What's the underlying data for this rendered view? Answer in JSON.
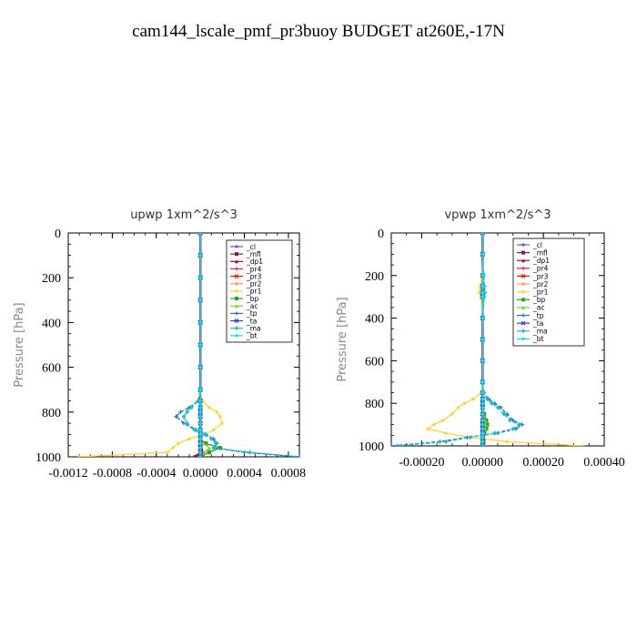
{
  "title": "cam144_lscale_pmf_pr3buoy  BUDGET at260E,-17N",
  "colors": {
    "cl": "#8e44c6",
    "mfl": "#7a1f4f",
    "dp1": "#b0003a",
    "pr4": "#e8203a",
    "pr3": "#ff1010",
    "pr2": "#ff9f3a",
    "pr1": "#ffd23a",
    "bp": "#2ca02c",
    "ac": "#7fd12f",
    "tp": "#1f77b4",
    "ta": "#3a3ad8",
    "ma": "#17becf",
    "bt": "#00e5ff"
  },
  "chart_data": [
    {
      "type": "line",
      "title": "upwp   1xm^2/s^3",
      "ylabel": "Pressure  [hPa]",
      "xlabel": "",
      "xlim": [
        -0.0012,
        0.0009
      ],
      "ylim": [
        1000,
        0
      ],
      "xticks": [
        -0.0012,
        -0.0008,
        -0.0004,
        0.0,
        0.0004,
        0.0008
      ],
      "xtick_labels": [
        "-0.0012",
        "-0.0008",
        "-0.0004",
        "0.0000",
        "0.0004",
        "0.0008"
      ],
      "yticks": [
        0,
        200,
        400,
        600,
        800,
        1000
      ],
      "ytick_labels": [
        "0",
        "200",
        "400",
        "600",
        "800",
        "1000"
      ],
      "legend_position": "top-right",
      "legend": [
        "_cl",
        "_mfl",
        "_dp1",
        "_pr4",
        "_pr3",
        "_pr2",
        "_pr1",
        "_bp",
        "_ac",
        "_tp",
        "_ta",
        "_ma",
        "_bt"
      ],
      "y": [
        0,
        100,
        200,
        300,
        400,
        500,
        600,
        700,
        750,
        780,
        800,
        820,
        850,
        880,
        900,
        920,
        940,
        960,
        980,
        1000
      ],
      "series": [
        {
          "key": "cl",
          "values": [
            0,
            0,
            0,
            0,
            0,
            0,
            0,
            0,
            0,
            0,
            0,
            0,
            0,
            0,
            0,
            0,
            0,
            0,
            0,
            0
          ]
        },
        {
          "key": "mfl",
          "values": [
            0,
            0,
            0,
            0,
            0,
            0,
            0,
            0,
            0,
            0,
            0,
            0,
            0,
            0,
            0,
            0,
            0,
            0,
            0,
            0
          ]
        },
        {
          "key": "dp1",
          "values": [
            0,
            0,
            0,
            0,
            0,
            0,
            0,
            0,
            0,
            0,
            0,
            0,
            0,
            0,
            0,
            0,
            0,
            1e-05,
            2e-05,
            -6e-05
          ]
        },
        {
          "key": "pr4",
          "values": [
            0,
            0,
            0,
            0,
            0,
            0,
            0,
            0,
            0,
            0,
            0,
            0,
            0,
            0,
            0,
            0,
            0,
            0,
            1e-05,
            3e-05
          ]
        },
        {
          "key": "pr3",
          "values": [
            0,
            0,
            0,
            0,
            0,
            0,
            0,
            0,
            0,
            0,
            0,
            0,
            0,
            0,
            0,
            0,
            0,
            0,
            0,
            2e-05
          ]
        },
        {
          "key": "pr2",
          "values": [
            0,
            0,
            0,
            0,
            0,
            0,
            0,
            0,
            0,
            0,
            0,
            0,
            0,
            0,
            0,
            0,
            0,
            0,
            0,
            0
          ]
        },
        {
          "key": "pr1",
          "values": [
            0,
            0,
            0,
            0,
            0,
            0,
            0,
            0,
            2e-05,
            8e-05,
            0.00015,
            0.00018,
            0.0002,
            0.00012,
            3e-05,
            -0.0001,
            -0.0002,
            -0.00025,
            -0.0003,
            -0.0011
          ]
        },
        {
          "key": "bp",
          "values": [
            0,
            0,
            0,
            0,
            0,
            0,
            0,
            0,
            0,
            0,
            0,
            0,
            0,
            0,
            0,
            0,
            5e-05,
            0.00018,
            8e-05,
            0
          ]
        },
        {
          "key": "ac",
          "values": [
            0,
            0,
            0,
            0,
            0,
            0,
            0,
            0,
            0,
            0,
            0,
            0,
            0,
            0,
            0,
            0,
            3e-05,
            8e-05,
            4e-05,
            0
          ]
        },
        {
          "key": "tp",
          "values": [
            0,
            0,
            0,
            0,
            0,
            0,
            0,
            0,
            -2e-05,
            -0.0001,
            -0.00018,
            -0.00022,
            -0.00015,
            -5e-05,
            5e-05,
            0.00012,
            0.00015,
            0.00012,
            0.0004,
            0.0009
          ]
        },
        {
          "key": "ta",
          "values": [
            0,
            0,
            0,
            0,
            0,
            0,
            0,
            0,
            0,
            0,
            0,
            0,
            0,
            0,
            0,
            0,
            0,
            0,
            0,
            0
          ]
        },
        {
          "key": "ma",
          "values": [
            0,
            0,
            0,
            0,
            0,
            0,
            0,
            0,
            -2e-05,
            -8e-05,
            -0.00012,
            -0.00015,
            -0.00012,
            -4e-05,
            4e-05,
            0.0001,
            0.00014,
            0.00012,
            0.00045,
            0.0009
          ]
        },
        {
          "key": "bt",
          "values": [
            0,
            0,
            0,
            0,
            0,
            0,
            0,
            0,
            0,
            0,
            0,
            0,
            0,
            0,
            0,
            0,
            0,
            0,
            0,
            0
          ]
        }
      ]
    },
    {
      "type": "line",
      "title": "vpwp   1xm^2/s^3",
      "ylabel": "Pressure  [hPa]",
      "xlabel": "",
      "xlim": [
        -0.0003,
        0.0004
      ],
      "ylim": [
        1000,
        0
      ],
      "xticks": [
        -0.0002,
        0.0,
        0.0002,
        0.0004
      ],
      "xtick_labels": [
        "-0.00020",
        "0.00000",
        "0.00020",
        "0.00040"
      ],
      "yticks": [
        0,
        200,
        400,
        600,
        800,
        1000
      ],
      "ytick_labels": [
        "0",
        "200",
        "400",
        "600",
        "800",
        "1000"
      ],
      "legend_position": "top-right",
      "legend": [
        "_cl",
        "_mfl",
        "_dp1",
        "_pr4",
        "_pr3",
        "_pr2",
        "_pr1",
        "_bp",
        "_ac",
        "_tp",
        "_ta",
        "_ma",
        "_bt"
      ],
      "y": [
        0,
        100,
        200,
        250,
        280,
        300,
        400,
        500,
        600,
        700,
        750,
        780,
        800,
        820,
        850,
        880,
        900,
        920,
        940,
        960,
        980,
        1000
      ],
      "series": [
        {
          "key": "cl",
          "values": [
            0,
            0,
            0,
            0,
            0,
            0,
            0,
            0,
            0,
            0,
            0,
            0,
            0,
            0,
            0,
            0,
            0,
            0,
            0,
            0,
            0,
            0
          ]
        },
        {
          "key": "mfl",
          "values": [
            0,
            0,
            0,
            0,
            0,
            0,
            0,
            0,
            0,
            0,
            0,
            0,
            0,
            0,
            0,
            0,
            0,
            0,
            0,
            0,
            0,
            0
          ]
        },
        {
          "key": "dp1",
          "values": [
            0,
            0,
            0,
            0,
            0,
            0,
            0,
            0,
            0,
            0,
            0,
            0,
            0,
            0,
            0,
            0,
            0,
            0,
            0,
            0,
            3e-06,
            -2e-06
          ]
        },
        {
          "key": "pr4",
          "values": [
            0,
            0,
            0,
            0,
            0,
            0,
            0,
            0,
            0,
            0,
            0,
            0,
            0,
            0,
            0,
            0,
            0,
            0,
            0,
            0,
            4e-06,
            2e-06
          ]
        },
        {
          "key": "pr3",
          "values": [
            0,
            0,
            0,
            0,
            0,
            0,
            0,
            0,
            0,
            0,
            0,
            0,
            0,
            0,
            0,
            0,
            0,
            0,
            0,
            0,
            3e-06,
            1e-06
          ]
        },
        {
          "key": "pr2",
          "values": [
            0,
            0,
            -2e-06,
            -5e-06,
            -6e-06,
            -4e-06,
            0,
            0,
            0,
            0,
            0,
            0,
            0,
            0,
            0,
            0,
            0,
            0,
            0,
            0,
            0,
            0
          ]
        },
        {
          "key": "pr1",
          "values": [
            0,
            0,
            -2e-06,
            -8e-06,
            -1e-05,
            -6e-06,
            0,
            0,
            0,
            0,
            -5e-06,
            -3e-05,
            -6e-05,
            -8e-05,
            -0.0001,
            -0.00013,
            -0.00016,
            -0.00018,
            -0.00012,
            -4e-05,
            8e-05,
            0.00033
          ]
        },
        {
          "key": "bp",
          "values": [
            0,
            0,
            0,
            0,
            0,
            0,
            0,
            0,
            0,
            0,
            0,
            0,
            0,
            0,
            5e-06,
            1.2e-05,
            1.5e-05,
            1.2e-05,
            6e-06,
            2e-06,
            0,
            0
          ]
        },
        {
          "key": "ac",
          "values": [
            0,
            0,
            0,
            0,
            0,
            0,
            0,
            0,
            0,
            0,
            0,
            0,
            0,
            0,
            3e-06,
            8e-06,
            1e-05,
            8e-06,
            4e-06,
            1e-06,
            0,
            0
          ]
        },
        {
          "key": "tp",
          "values": [
            0,
            0,
            3e-06,
            6e-06,
            8e-06,
            5e-06,
            0,
            0,
            0,
            0,
            4e-06,
            2e-05,
            4e-05,
            6e-05,
            8e-05,
            0.0001,
            0.00013,
            0.00011,
            5e-05,
            -5e-05,
            -0.00014,
            -0.0003
          ]
        },
        {
          "key": "ta",
          "values": [
            0,
            0,
            0,
            0,
            0,
            0,
            0,
            0,
            0,
            0,
            0,
            0,
            0,
            0,
            0,
            0,
            0,
            0,
            0,
            0,
            0,
            0
          ]
        },
        {
          "key": "ma",
          "values": [
            0,
            0,
            2e-06,
            5e-06,
            6e-06,
            4e-06,
            0,
            0,
            0,
            0,
            3e-06,
            1.5e-05,
            3e-05,
            5e-05,
            7e-05,
            9e-05,
            0.00012,
            0.0001,
            4e-05,
            -4e-05,
            -0.00012,
            -0.00028
          ]
        },
        {
          "key": "bt",
          "values": [
            0,
            0,
            0,
            0,
            0,
            0,
            0,
            0,
            0,
            0,
            0,
            0,
            0,
            0,
            0,
            0,
            0,
            0,
            0,
            0,
            0,
            0
          ]
        }
      ]
    }
  ]
}
